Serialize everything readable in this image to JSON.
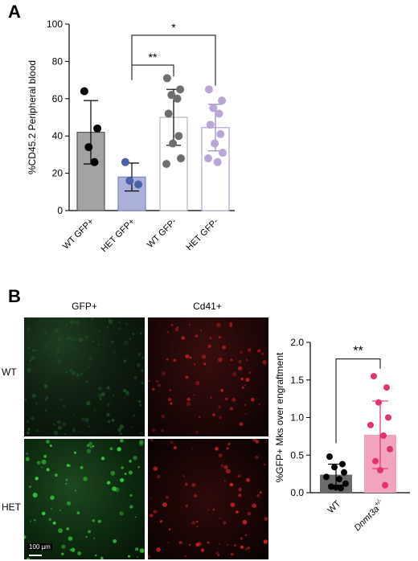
{
  "panel_a": {
    "label": "A"
  },
  "panel_b": {
    "label": "B",
    "column_labels": [
      "GFP+",
      "Cd41+"
    ],
    "row_labels": [
      "WT",
      "HET"
    ],
    "scale_bar": "100 µm"
  },
  "colors": {
    "wt_gfp_pos": "#a3a3a3",
    "het_gfp_pos": "#aab0d9",
    "het_gfp_pos_dots": "#4a63a8",
    "wt_gfp_neg_dots": "#6e6e6e",
    "het_gfp_neg": "#b9a6d6",
    "wt_b": "#6b6b6b",
    "dnmt3a": "#f2a3bd",
    "dnmt3a_dots": "#e0336f"
  },
  "chart_data": [
    {
      "type": "bar",
      "ylabel": "%CD45.2 Peripheral blood",
      "ylim": [
        0,
        100
      ],
      "yticks": [
        0,
        20,
        40,
        60,
        80,
        100
      ],
      "categories": [
        "WT GFP+",
        "HET GFP+",
        "WT GFP-",
        "HET GFP-"
      ],
      "bar_style": [
        "filled",
        "filled",
        "outline",
        "outline"
      ],
      "values": [
        42,
        18,
        50,
        44.5
      ],
      "sd": [
        17,
        7.5,
        15,
        12.5
      ],
      "points": [
        [
          64,
          44,
          34,
          26
        ],
        [
          26,
          14,
          16
        ],
        [
          71,
          65,
          62,
          60,
          52,
          40,
          36,
          28,
          25
        ],
        [
          65,
          59,
          55,
          52,
          46,
          41,
          36,
          31,
          28,
          26
        ]
      ],
      "significance": [
        {
          "pair": [
            "HET GFP+",
            "WT GFP-"
          ],
          "label": "**"
        },
        {
          "pair": [
            "HET GFP+",
            "HET GFP-"
          ],
          "label": "*"
        }
      ]
    },
    {
      "type": "bar",
      "ylabel": "%GFP+ Mks over engraftment",
      "ylim": [
        0,
        2.0
      ],
      "yticks": [
        "0.0",
        "0.5",
        "1.0",
        "1.5",
        "2.0"
      ],
      "categories": [
        "WT",
        "Dnmt3a"
      ],
      "category_superscript": [
        "",
        "+/-"
      ],
      "values": [
        0.24,
        0.77
      ],
      "sd": [
        0.14,
        0.45
      ],
      "points": [
        [
          0.48,
          0.38,
          0.34,
          0.27,
          0.21,
          0.18,
          0.12,
          0.08,
          0.07,
          0.06
        ],
        [
          1.55,
          1.4,
          1.2,
          1.0,
          0.9,
          0.76,
          0.58,
          0.42,
          0.3,
          0.1
        ]
      ],
      "significance": [
        {
          "pair": [
            "WT",
            "Dnmt3a"
          ],
          "label": "**"
        }
      ]
    }
  ]
}
